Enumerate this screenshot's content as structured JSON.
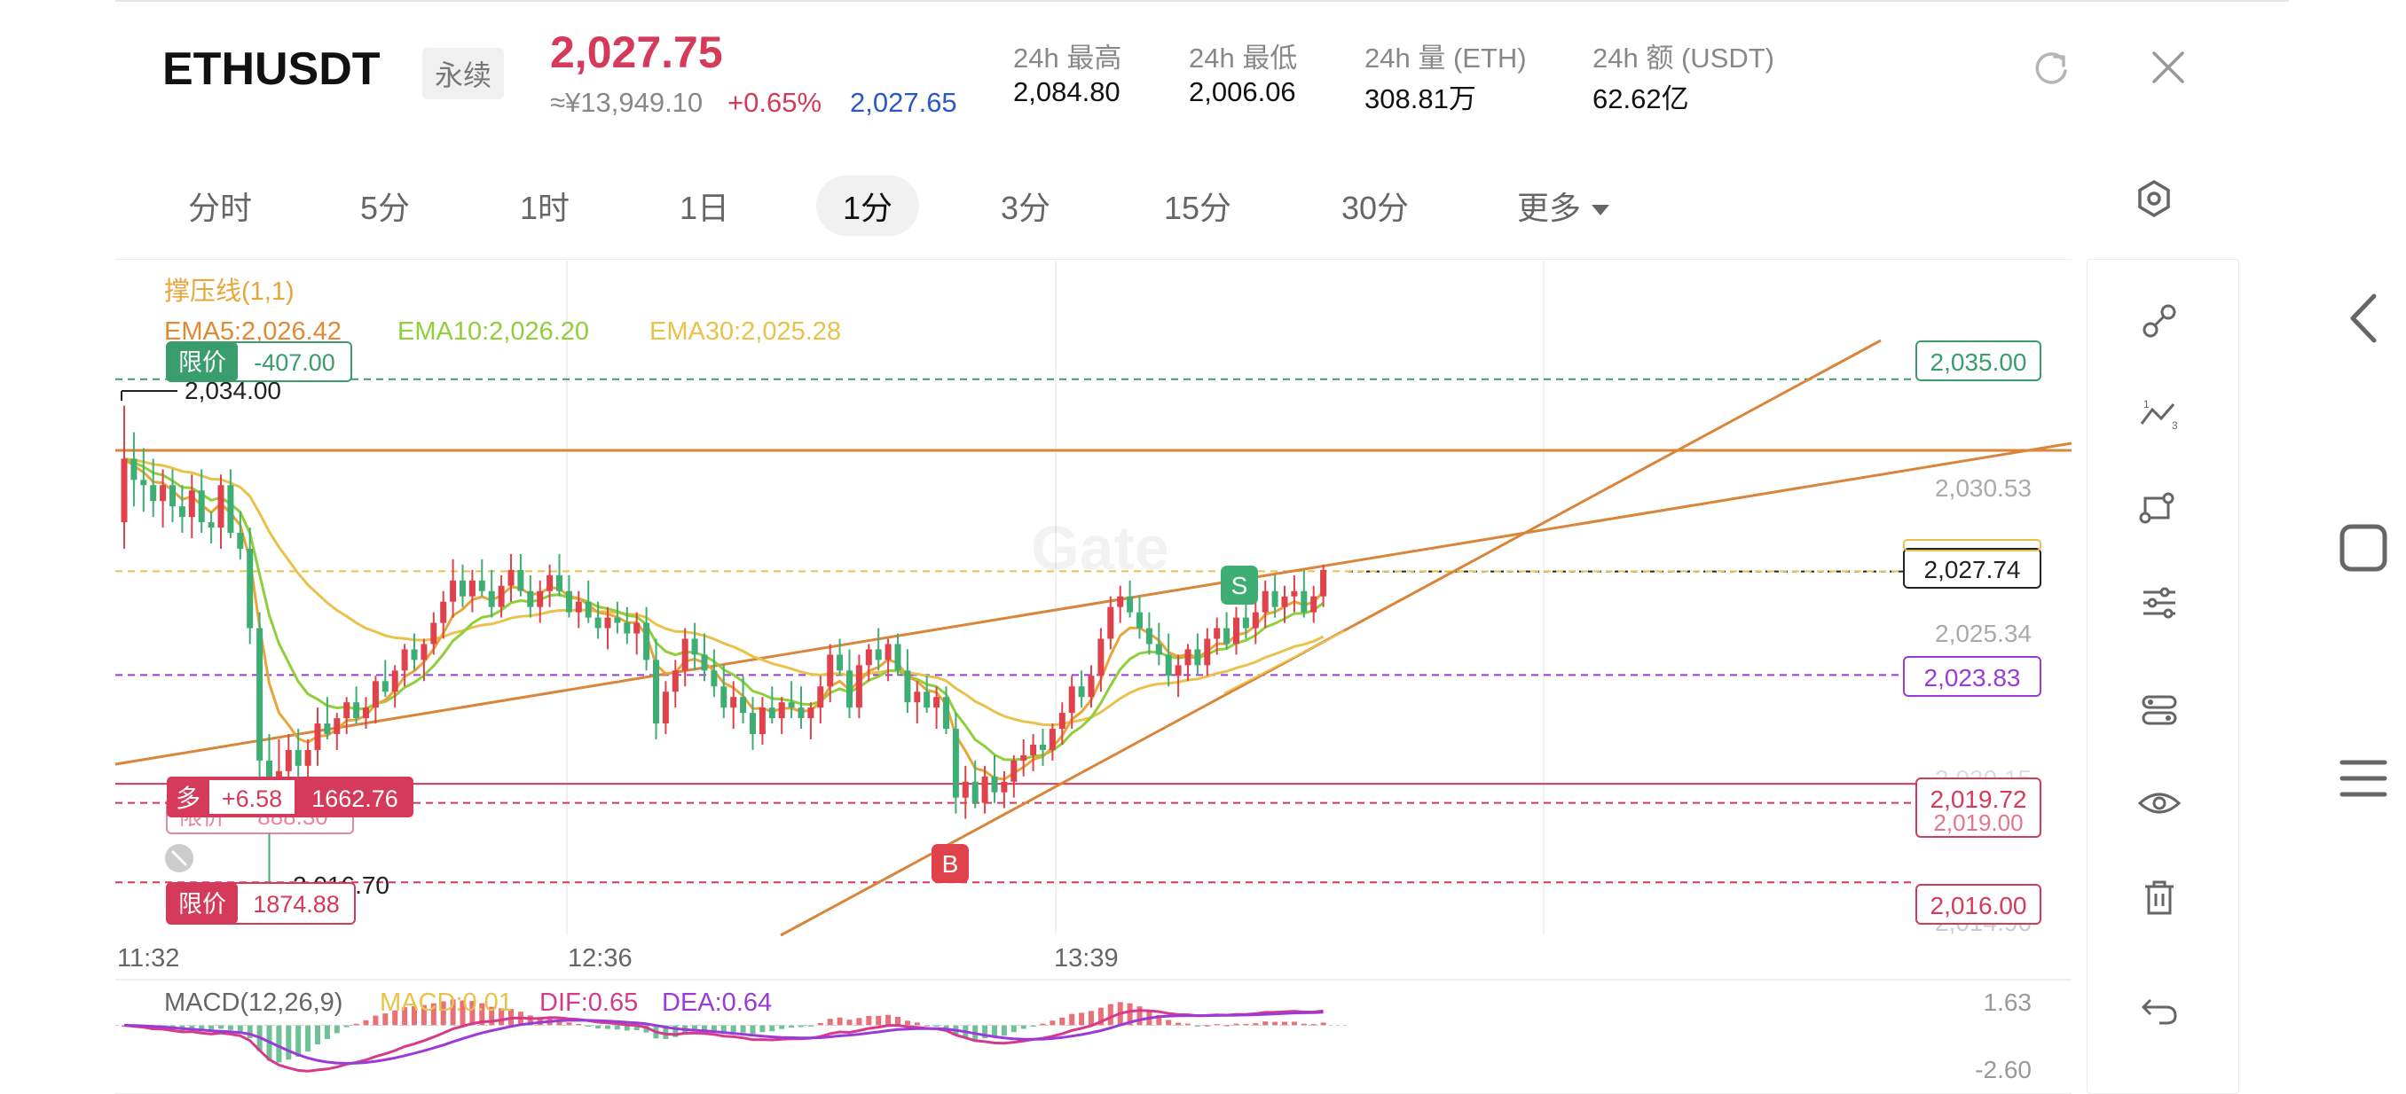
{
  "header": {
    "symbol": "ETHUSDT",
    "contract_type": "永续",
    "last_price": "2,027.75",
    "cny_price": "≈¥13,949.10",
    "change_pct": "+0.65%",
    "mark_price": "2,027.65",
    "stats": [
      {
        "label": "24h  最高",
        "value": "2,084.80"
      },
      {
        "label": "24h  最低",
        "value": "2,006.06"
      },
      {
        "label": "24h  量 (ETH)",
        "value": "308.81万"
      },
      {
        "label": "24h  额 (USDT)",
        "value": "62.62亿"
      }
    ]
  },
  "timeframes": [
    "分时",
    "5分",
    "1时",
    "1日",
    "1分",
    "3分",
    "15分",
    "30分",
    "更多"
  ],
  "active_timeframe": "1分",
  "indicators": {
    "sr_line": "撑压线(1,1)",
    "ema5": "EMA5:2,026.42",
    "ema10": "EMA10:2,026.20",
    "ema30": "EMA30:2,025.28"
  },
  "macd_legend": {
    "title": "MACD(12,26,9)",
    "macd": "MACD:0.01",
    "dif": "DIF:0.65",
    "dea": "DEA:0.64"
  },
  "colors": {
    "up": "#e0424b",
    "down": "#3fae74",
    "ema5": "#e8a53a",
    "ema10": "#8fcf3a",
    "ema30": "#e8c24a",
    "trendline": "#d9853a",
    "dif": "#d63a8a",
    "dea": "#9b3ad6",
    "accent_red": "#d63a5a",
    "accent_blue": "#2b58c9"
  },
  "orders": [
    {
      "tag": "限价",
      "value": "-407.00",
      "price_label": "2,035.00",
      "color": "#3a9d6e"
    },
    {
      "tag": "多",
      "pnl": "+6.58",
      "value": "1662.76",
      "price_label": "2,019.72",
      "color": "#d63a5a"
    },
    {
      "tag": "限价",
      "value": "888.30",
      "price_label": "2,019.00",
      "color": "#d63a5a"
    },
    {
      "tag": "限价",
      "value": "1874.88",
      "price_label": "2,016.00",
      "color": "#d63a5a"
    }
  ],
  "price_markers": {
    "high_label": "2,034.00",
    "low_label": "2,016.70",
    "current_price_label": "2,027.74",
    "alert_line_label": "2,023.83",
    "y_ticks": [
      "2,030.53",
      "2,025.34",
      "2,020.15",
      "2,014.96"
    ],
    "buy_marker": "B",
    "sell_marker": "S"
  },
  "macd_axis": {
    "top": "1.63",
    "bottom": "-2.60"
  },
  "watermark": "Gate",
  "chart_data": {
    "type": "candlestick",
    "x_ticks": [
      "11:32",
      "12:36",
      "13:39"
    ],
    "ylim": [
      2014.0,
      2036.6
    ],
    "interval": "1分",
    "ohlc": [
      [
        2029.6,
        2034.0,
        2028.6,
        2032.0
      ],
      [
        2032.0,
        2033.0,
        2030.2,
        2031.2
      ],
      [
        2031.2,
        2032.4,
        2030.0,
        2031.0
      ],
      [
        2031.0,
        2032.0,
        2029.8,
        2030.4
      ],
      [
        2030.4,
        2031.6,
        2029.4,
        2031.0
      ],
      [
        2031.0,
        2031.6,
        2029.6,
        2030.2
      ],
      [
        2030.2,
        2031.0,
        2029.2,
        2029.8
      ],
      [
        2029.8,
        2031.4,
        2029.0,
        2030.8
      ],
      [
        2030.8,
        2031.6,
        2029.2,
        2029.6
      ],
      [
        2029.6,
        2030.0,
        2028.8,
        2029.4
      ],
      [
        2029.4,
        2031.4,
        2028.6,
        2031.0
      ],
      [
        2031.0,
        2031.6,
        2029.0,
        2029.2
      ],
      [
        2029.2,
        2030.0,
        2028.2,
        2028.6
      ],
      [
        2028.6,
        2029.4,
        2025.0,
        2025.6
      ],
      [
        2025.6,
        2026.2,
        2019.0,
        2020.6
      ],
      [
        2020.6,
        2021.6,
        2016.0,
        2019.2
      ],
      [
        2019.2,
        2021.4,
        2018.6,
        2020.2
      ],
      [
        2020.2,
        2021.6,
        2019.6,
        2021.0
      ],
      [
        2021.0,
        2021.8,
        2020.0,
        2020.4
      ],
      [
        2020.4,
        2021.4,
        2019.6,
        2021.0
      ],
      [
        2021.0,
        2022.6,
        2020.4,
        2022.0
      ],
      [
        2022.0,
        2023.0,
        2021.4,
        2021.6
      ],
      [
        2021.6,
        2022.4,
        2021.0,
        2022.2
      ],
      [
        2022.2,
        2023.0,
        2021.6,
        2022.8
      ],
      [
        2022.8,
        2023.4,
        2022.0,
        2022.2
      ],
      [
        2022.2,
        2023.0,
        2021.8,
        2022.6
      ],
      [
        2022.6,
        2023.8,
        2022.0,
        2023.6
      ],
      [
        2023.6,
        2024.4,
        2023.0,
        2023.2
      ],
      [
        2023.2,
        2024.2,
        2022.6,
        2024.0
      ],
      [
        2024.0,
        2025.0,
        2023.4,
        2024.8
      ],
      [
        2024.8,
        2025.4,
        2024.0,
        2024.4
      ],
      [
        2024.4,
        2025.2,
        2023.6,
        2025.0
      ],
      [
        2025.0,
        2026.2,
        2024.6,
        2025.8
      ],
      [
        2025.8,
        2027.0,
        2025.2,
        2026.6
      ],
      [
        2026.6,
        2028.2,
        2026.0,
        2027.4
      ],
      [
        2027.4,
        2028.0,
        2026.4,
        2026.8
      ],
      [
        2026.8,
        2027.8,
        2026.2,
        2027.4
      ],
      [
        2027.4,
        2028.2,
        2026.8,
        2027.0
      ],
      [
        2027.0,
        2027.8,
        2026.0,
        2026.4
      ],
      [
        2026.4,
        2027.6,
        2026.0,
        2027.2
      ],
      [
        2027.2,
        2028.4,
        2026.6,
        2027.8
      ],
      [
        2027.8,
        2028.4,
        2026.8,
        2027.0
      ],
      [
        2027.0,
        2027.6,
        2026.0,
        2026.4
      ],
      [
        2026.4,
        2027.4,
        2025.8,
        2027.0
      ],
      [
        2027.0,
        2028.0,
        2026.4,
        2027.6
      ],
      [
        2027.6,
        2028.4,
        2026.8,
        2027.0
      ],
      [
        2027.0,
        2027.6,
        2026.0,
        2026.2
      ],
      [
        2026.2,
        2027.0,
        2025.6,
        2026.6
      ],
      [
        2026.6,
        2027.4,
        2025.8,
        2026.0
      ],
      [
        2026.0,
        2026.6,
        2025.2,
        2025.6
      ],
      [
        2025.6,
        2026.4,
        2024.8,
        2026.0
      ],
      [
        2026.0,
        2026.6,
        2025.4,
        2025.8
      ],
      [
        2025.8,
        2026.4,
        2025.0,
        2025.4
      ],
      [
        2025.4,
        2026.2,
        2024.6,
        2025.8
      ],
      [
        2025.8,
        2026.4,
        2024.0,
        2024.4
      ],
      [
        2024.4,
        2025.2,
        2021.4,
        2022.0
      ],
      [
        2022.0,
        2023.6,
        2021.6,
        2023.2
      ],
      [
        2023.2,
        2024.4,
        2022.6,
        2024.0
      ],
      [
        2024.0,
        2025.6,
        2023.4,
        2025.2
      ],
      [
        2025.2,
        2025.8,
        2024.0,
        2024.6
      ],
      [
        2024.6,
        2025.4,
        2023.6,
        2024.0
      ],
      [
        2024.0,
        2024.8,
        2023.0,
        2023.4
      ],
      [
        2023.4,
        2024.2,
        2022.2,
        2022.6
      ],
      [
        2022.6,
        2023.6,
        2021.8,
        2023.0
      ],
      [
        2023.0,
        2023.8,
        2022.0,
        2022.4
      ],
      [
        2022.4,
        2023.0,
        2021.0,
        2021.6
      ],
      [
        2021.6,
        2023.0,
        2021.2,
        2022.6
      ],
      [
        2022.6,
        2023.4,
        2022.0,
        2022.2
      ],
      [
        2022.2,
        2023.0,
        2021.6,
        2022.8
      ],
      [
        2022.8,
        2023.6,
        2022.2,
        2022.6
      ],
      [
        2022.6,
        2023.4,
        2021.8,
        2022.2
      ],
      [
        2022.2,
        2022.8,
        2021.4,
        2022.6
      ],
      [
        2022.6,
        2023.8,
        2022.0,
        2023.4
      ],
      [
        2023.4,
        2025.0,
        2022.8,
        2024.6
      ],
      [
        2024.6,
        2025.2,
        2023.8,
        2024.0
      ],
      [
        2024.0,
        2024.8,
        2022.2,
        2022.6
      ],
      [
        2022.6,
        2024.6,
        2022.2,
        2024.2
      ],
      [
        2024.2,
        2025.0,
        2023.6,
        2024.8
      ],
      [
        2024.8,
        2025.6,
        2024.0,
        2024.4
      ],
      [
        2024.4,
        2025.2,
        2023.6,
        2025.0
      ],
      [
        2025.0,
        2025.4,
        2023.8,
        2024.0
      ],
      [
        2024.0,
        2024.8,
        2022.4,
        2022.8
      ],
      [
        2022.8,
        2023.6,
        2022.0,
        2023.2
      ],
      [
        2023.2,
        2023.8,
        2022.4,
        2022.6
      ],
      [
        2022.6,
        2023.4,
        2021.8,
        2023.0
      ],
      [
        2023.0,
        2023.4,
        2021.6,
        2021.8
      ],
      [
        2021.8,
        2022.4,
        2018.6,
        2019.2
      ],
      [
        2019.2,
        2020.4,
        2018.4,
        2019.8
      ],
      [
        2019.8,
        2020.6,
        2018.8,
        2019.0
      ],
      [
        2019.0,
        2020.4,
        2018.6,
        2020.0
      ],
      [
        2020.0,
        2020.8,
        2019.0,
        2019.4
      ],
      [
        2019.4,
        2020.2,
        2018.8,
        2019.8
      ],
      [
        2019.8,
        2020.8,
        2019.2,
        2020.6
      ],
      [
        2020.6,
        2021.4,
        2020.0,
        2020.8
      ],
      [
        2020.8,
        2021.6,
        2020.2,
        2021.2
      ],
      [
        2021.2,
        2021.8,
        2020.4,
        2021.0
      ],
      [
        2021.0,
        2022.0,
        2020.6,
        2021.8
      ],
      [
        2021.8,
        2022.8,
        2021.2,
        2022.4
      ],
      [
        2022.4,
        2023.8,
        2021.8,
        2023.4
      ],
      [
        2023.4,
        2024.0,
        2022.6,
        2023.0
      ],
      [
        2023.0,
        2024.2,
        2022.6,
        2023.8
      ],
      [
        2023.8,
        2025.6,
        2023.2,
        2025.2
      ],
      [
        2025.2,
        2026.8,
        2024.8,
        2026.4
      ],
      [
        2026.4,
        2027.2,
        2025.8,
        2026.8
      ],
      [
        2026.8,
        2027.4,
        2026.0,
        2026.2
      ],
      [
        2026.2,
        2026.8,
        2025.2,
        2025.6
      ],
      [
        2025.6,
        2026.2,
        2024.6,
        2025.0
      ],
      [
        2025.0,
        2025.8,
        2024.2,
        2024.6
      ],
      [
        2024.6,
        2025.4,
        2023.4,
        2023.8
      ],
      [
        2023.8,
        2024.6,
        2023.0,
        2024.2
      ],
      [
        2024.2,
        2025.0,
        2023.6,
        2024.8
      ],
      [
        2024.8,
        2025.4,
        2023.8,
        2024.2
      ],
      [
        2024.2,
        2025.6,
        2023.8,
        2025.2
      ],
      [
        2025.2,
        2026.0,
        2024.6,
        2025.6
      ],
      [
        2025.6,
        2026.2,
        2024.8,
        2025.0
      ],
      [
        2025.0,
        2026.4,
        2024.6,
        2026.0
      ],
      [
        2026.0,
        2026.8,
        2025.2,
        2025.6
      ],
      [
        2025.6,
        2026.6,
        2025.0,
        2026.2
      ],
      [
        2026.2,
        2027.4,
        2025.6,
        2027.0
      ],
      [
        2027.0,
        2027.6,
        2026.0,
        2026.4
      ],
      [
        2026.4,
        2027.2,
        2025.8,
        2026.8
      ],
      [
        2026.8,
        2027.6,
        2026.2,
        2027.0
      ],
      [
        2027.0,
        2027.8,
        2026.0,
        2026.2
      ],
      [
        2026.2,
        2027.2,
        2025.8,
        2026.8
      ],
      [
        2026.8,
        2028.0,
        2026.4,
        2027.8
      ]
    ],
    "reference_lines": [
      {
        "label": "2,035.00",
        "value": 2035.0,
        "style": "dashed",
        "color": "#3a9d6e"
      },
      {
        "label": "2,023.83",
        "value": 2023.83,
        "style": "dashed",
        "color": "#9b3ad6"
      },
      {
        "label": "2,019.72",
        "value": 2019.72,
        "style": "solid",
        "color": "#d63a5a"
      },
      {
        "label": "2,019.00",
        "value": 2019.0,
        "style": "dashed",
        "color": "#d63a5a"
      },
      {
        "label": "2,016.00",
        "value": 2016.0,
        "style": "dashed",
        "color": "#d63a5a"
      },
      {
        "label": "2,027.74",
        "value": 2027.74,
        "style": "dotted",
        "color": "#222222"
      },
      {
        "label": "",
        "value": 2027.75,
        "style": "dashed",
        "color": "#e8c24a"
      }
    ],
    "macd": {
      "ylim": [
        -2.6,
        1.63
      ]
    }
  }
}
